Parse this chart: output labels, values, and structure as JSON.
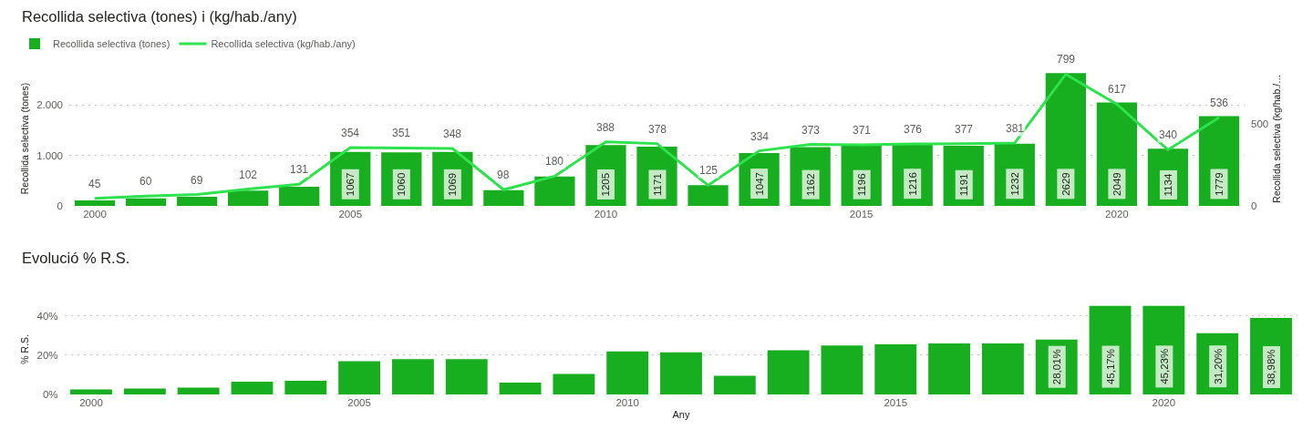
{
  "chart_data": [
    {
      "type": "bar",
      "title": "Recollida selectiva (tones) i (kg/hab./any)",
      "ylabel": "Recollida selectiva (tones)",
      "y2label": "Recollida selectiva (kg/hab./…",
      "x": [
        2000,
        2001,
        2002,
        2003,
        2004,
        2005,
        2006,
        2007,
        2008,
        2009,
        2010,
        2011,
        2012,
        2013,
        2014,
        2015,
        2016,
        2017,
        2018,
        2019,
        2020,
        2021,
        2022
      ],
      "xlim": [
        1999.5,
        2022.5
      ],
      "xticks": [
        2000,
        2005,
        2010,
        2015,
        2020
      ],
      "ylim": [
        0,
        2670
      ],
      "yticks": [
        0,
        {
          "value": 1000,
          "label": "1.000"
        },
        {
          "value": 2000,
          "label": "2.000"
        }
      ],
      "y2lim": [
        0,
        818
      ],
      "y2ticks": [
        0,
        500
      ],
      "series": [
        {
          "name": "Recollida selectiva (tones)",
          "type": "bar",
          "color": "#17ae20",
          "values": [
            110,
            150,
            180,
            300,
            380,
            1067,
            1060,
            1069,
            310,
            580,
            1205,
            1171,
            410,
            1047,
            1162,
            1196,
            1216,
            1191,
            1232,
            2629,
            2049,
            1134,
            1779
          ],
          "value_labels": [
            null,
            null,
            null,
            null,
            null,
            "1067",
            "1060",
            "1069",
            null,
            null,
            "1205",
            "1171",
            null,
            "1047",
            "1162",
            "1196",
            "1216",
            "1191",
            "1232",
            "2629",
            "2049",
            "1134",
            "1779"
          ]
        },
        {
          "name": "Recollida selectiva (kg/hab./any)",
          "type": "line",
          "axis": "y2",
          "color": "#2ee24e",
          "values": [
            45,
            60,
            69,
            102,
            131,
            354,
            351,
            348,
            98,
            180,
            388,
            378,
            125,
            334,
            373,
            371,
            376,
            377,
            381,
            799,
            617,
            340,
            536
          ],
          "value_labels": [
            "45",
            "60",
            "69",
            "102",
            "131",
            "354",
            "351",
            "348",
            "98",
            "180",
            "388",
            "378",
            "125",
            "334",
            "373",
            "371",
            "376",
            "377",
            "381",
            "799",
            "617",
            "340",
            "536"
          ]
        }
      ],
      "grid": "y",
      "legend": "top left",
      "line_style": "solid"
    },
    {
      "type": "bar",
      "title": "Evolució % R.S.",
      "xlabel": "Any",
      "ylabel": "% R.S.",
      "x": [
        2000,
        2001,
        2002,
        2003,
        2004,
        2005,
        2006,
        2007,
        2008,
        2009,
        2010,
        2011,
        2012,
        2013,
        2014,
        2015,
        2016,
        2017,
        2018,
        2019,
        2020,
        2021,
        2022
      ],
      "xlim": [
        1999.5,
        2022.5
      ],
      "xticks": [
        2000,
        2005,
        2010,
        2015,
        2020
      ],
      "ylim": [
        0,
        46
      ],
      "yticks": [
        {
          "value": 0,
          "label": "0%"
        },
        {
          "value": 20,
          "label": "20%"
        },
        {
          "value": 40,
          "label": "40%"
        }
      ],
      "color": "#17ae20",
      "values": [
        2.5,
        3,
        3.5,
        6.5,
        7,
        17,
        18,
        18,
        6,
        10.5,
        22,
        21.5,
        9.5,
        22.5,
        25,
        25.5,
        26,
        26,
        28.01,
        45.17,
        45.23,
        31.2,
        38.98
      ],
      "value_labels": [
        null,
        null,
        null,
        null,
        null,
        null,
        null,
        null,
        null,
        null,
        null,
        null,
        null,
        null,
        null,
        null,
        null,
        null,
        "28,01%",
        "45,17%",
        "45,23%",
        "31,20%",
        "38,98%"
      ],
      "grid": "y"
    }
  ]
}
